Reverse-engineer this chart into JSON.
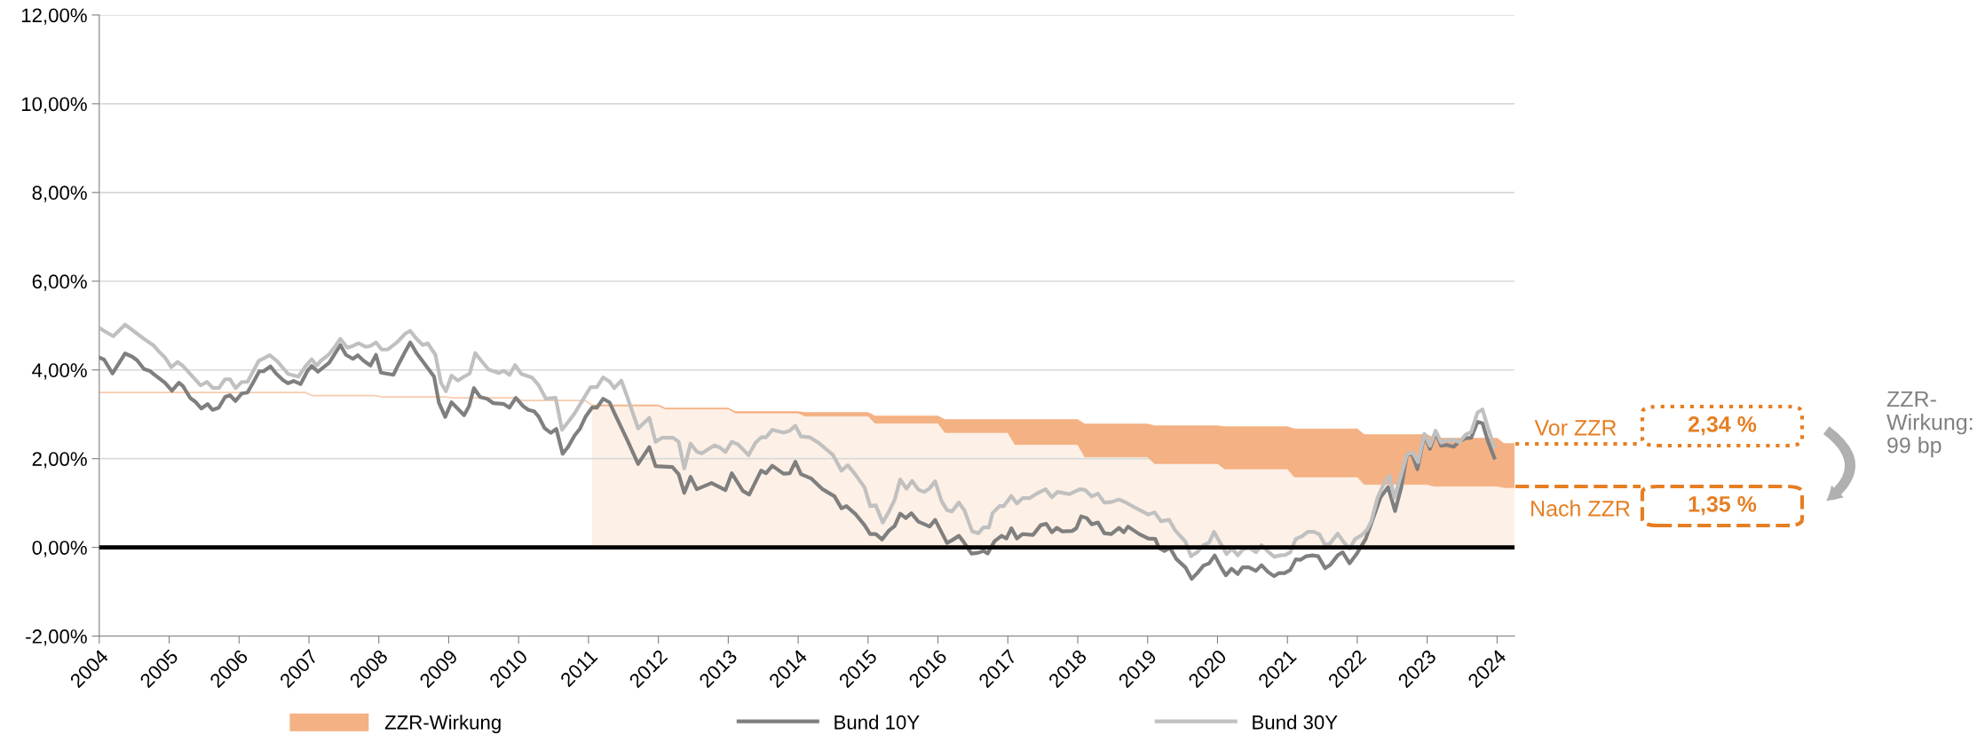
{
  "chart_data": {
    "type": "line",
    "xlim": [
      2004,
      2024.25
    ],
    "xticks": [
      2004,
      2005,
      2006,
      2007,
      2008,
      2009,
      2010,
      2011,
      2012,
      2013,
      2014,
      2015,
      2016,
      2017,
      2018,
      2019,
      2020,
      2021,
      2022,
      2023,
      2024
    ],
    "ylim": [
      -2,
      12
    ],
    "yticks": [
      {
        "value": -2,
        "label": "-2,00%"
      },
      {
        "value": 0,
        "label": "0,00%"
      },
      {
        "value": 2,
        "label": "2,00%"
      },
      {
        "value": 4,
        "label": "4,00%"
      },
      {
        "value": 6,
        "label": "6,00%"
      },
      {
        "value": 8,
        "label": "8,00%"
      },
      {
        "value": 10,
        "label": "10,00%"
      },
      {
        "value": 12,
        "label": "12,00%"
      }
    ],
    "grid": "y",
    "legend": "bottom",
    "stacked": true,
    "line_style": "solid",
    "marker": "none",
    "ref_lines": [
      {
        "axis": "y",
        "value": 0,
        "color": "#000000"
      }
    ],
    "series": [
      {
        "type": "line",
        "color": "#f8cbad",
        "x": [
          2004.0,
          2006.95,
          2007.05,
          2007.95,
          2008.05,
          2008.95,
          2009.05,
          2009.95,
          2010.05,
          2010.95,
          2011.05
        ],
        "values": [
          3.49,
          3.49,
          3.42,
          3.42,
          3.39,
          3.39,
          3.37,
          3.37,
          3.31,
          3.31,
          3.21
        ]
      },
      {
        "type": "area",
        "color": "#fdf0e6",
        "x": [
          2011.05,
          2012.0,
          2012.1,
          2013.0,
          2013.1,
          2014.0,
          2014.1,
          2015.0,
          2015.1,
          2016.0,
          2016.1,
          2017.0,
          2017.1,
          2018.0,
          2018.1,
          2019.0,
          2019.1,
          2020.0,
          2020.1,
          2021.0,
          2021.1,
          2022.0,
          2022.1,
          2023.0,
          2023.1,
          2024.0,
          2024.1,
          2024.25
        ],
        "values": [
          3.19,
          3.19,
          3.12,
          3.12,
          3.03,
          3.03,
          2.96,
          2.96,
          2.8,
          2.8,
          2.59,
          2.59,
          2.32,
          2.32,
          2.04,
          2.04,
          1.89,
          1.89,
          1.77,
          1.77,
          1.59,
          1.59,
          1.42,
          1.42,
          1.38,
          1.38,
          1.35,
          1.35
        ]
      },
      {
        "name": "ZZR-Wirkung",
        "type": "area",
        "color": "#f4b183",
        "x": [
          2011.05,
          2012.0,
          2012.1,
          2013.0,
          2013.1,
          2014.0,
          2014.1,
          2015.0,
          2015.1,
          2016.0,
          2016.1,
          2017.0,
          2017.1,
          2018.0,
          2018.1,
          2019.0,
          2019.1,
          2020.0,
          2020.1,
          2021.0,
          2021.1,
          2022.0,
          2022.1,
          2023.0,
          2023.1,
          2024.0,
          2024.1,
          2024.25
        ],
        "values": [
          0.02,
          0.02,
          0.02,
          0.02,
          0.03,
          0.03,
          0.08,
          0.08,
          0.16,
          0.16,
          0.29,
          0.29,
          0.56,
          0.56,
          0.74,
          0.74,
          0.85,
          0.85,
          0.95,
          0.95,
          1.08,
          1.08,
          1.12,
          1.12,
          1.08,
          1.08,
          0.99,
          0.99
        ]
      },
      {
        "name": "Bund 10Y",
        "color": "#7f7f7f",
        "x": [
          2004.0,
          2004.07,
          2004.19,
          2004.37,
          2004.47,
          2004.54,
          2004.64,
          2004.72,
          2004.79,
          2004.94,
          2005.04,
          2005.14,
          2005.2,
          2005.3,
          2005.37,
          2005.46,
          2005.55,
          2005.62,
          2005.71,
          2005.8,
          2005.87,
          2005.95,
          2006.04,
          2006.12,
          2006.2,
          2006.29,
          2006.35,
          2006.45,
          2006.53,
          2006.63,
          2006.7,
          2006.78,
          2006.88,
          2006.98,
          2007.04,
          2007.13,
          2007.29,
          2007.45,
          2007.53,
          2007.63,
          2007.7,
          2007.78,
          2007.88,
          2007.96,
          2008.03,
          2008.21,
          2008.28,
          2008.38,
          2008.45,
          2008.54,
          2008.64,
          2008.79,
          2008.86,
          2008.95,
          2009.04,
          2009.14,
          2009.22,
          2009.29,
          2009.36,
          2009.45,
          2009.55,
          2009.64,
          2009.79,
          2009.87,
          2009.96,
          2010.06,
          2010.14,
          2010.22,
          2010.29,
          2010.37,
          2010.46,
          2010.54,
          2010.63,
          2010.71,
          2010.8,
          2010.88,
          2010.96,
          2011.05,
          2011.12,
          2011.21,
          2011.3,
          2011.37,
          2011.56,
          2011.71,
          2011.87,
          2011.96,
          2012.2,
          2012.29,
          2012.37,
          2012.46,
          2012.55,
          2012.76,
          2012.96,
          2013.05,
          2013.21,
          2013.3,
          2013.47,
          2013.54,
          2013.63,
          2013.79,
          2013.88,
          2013.96,
          2014.04,
          2014.19,
          2014.35,
          2014.52,
          2014.62,
          2014.69,
          2014.82,
          2014.95,
          2015.03,
          2015.11,
          2015.2,
          2015.3,
          2015.38,
          2015.46,
          2015.54,
          2015.62,
          2015.72,
          2015.88,
          2015.96,
          2016.13,
          2016.2,
          2016.3,
          2016.36,
          2016.48,
          2016.58,
          2016.65,
          2016.71,
          2016.81,
          2016.91,
          2016.98,
          2017.05,
          2017.13,
          2017.21,
          2017.36,
          2017.47,
          2017.55,
          2017.63,
          2017.7,
          2017.78,
          2017.92,
          2017.98,
          2018.05,
          2018.13,
          2018.2,
          2018.29,
          2018.38,
          2018.48,
          2018.59,
          2018.66,
          2018.72,
          2018.88,
          2019.01,
          2019.11,
          2019.16,
          2019.24,
          2019.32,
          2019.41,
          2019.54,
          2019.63,
          2019.71,
          2019.8,
          2019.88,
          2019.96,
          2020.05,
          2020.12,
          2020.2,
          2020.29,
          2020.36,
          2020.45,
          2020.55,
          2020.63,
          2020.72,
          2020.81,
          2020.88,
          2020.96,
          2021.04,
          2021.12,
          2021.19,
          2021.27,
          2021.36,
          2021.44,
          2021.54,
          2021.61,
          2021.72,
          2021.79,
          2021.89,
          2021.99,
          2022.12,
          2022.23,
          2022.33,
          2022.44,
          2022.54,
          2022.63,
          2022.71,
          2022.78,
          2022.86,
          2022.96,
          2023.04,
          2023.12,
          2023.2,
          2023.28,
          2023.38,
          2023.46,
          2023.55,
          2023.63,
          2023.72,
          2023.79,
          2023.87,
          2023.96
        ],
        "values": [
          4.28,
          4.23,
          3.92,
          4.37,
          4.3,
          4.22,
          4.02,
          3.98,
          3.89,
          3.71,
          3.53,
          3.71,
          3.63,
          3.37,
          3.29,
          3.13,
          3.23,
          3.1,
          3.15,
          3.39,
          3.43,
          3.3,
          3.47,
          3.49,
          3.71,
          3.97,
          3.97,
          4.08,
          3.92,
          3.77,
          3.7,
          3.75,
          3.68,
          3.98,
          4.09,
          3.96,
          4.16,
          4.56,
          4.34,
          4.25,
          4.33,
          4.21,
          4.1,
          4.34,
          3.94,
          3.89,
          4.12,
          4.42,
          4.62,
          4.38,
          4.17,
          3.85,
          3.26,
          2.94,
          3.27,
          3.11,
          2.98,
          3.18,
          3.59,
          3.39,
          3.35,
          3.25,
          3.23,
          3.15,
          3.37,
          3.19,
          3.1,
          3.07,
          2.94,
          2.69,
          2.58,
          2.67,
          2.11,
          2.27,
          2.52,
          2.68,
          2.95,
          3.15,
          3.15,
          3.35,
          3.27,
          3.03,
          2.4,
          1.88,
          2.26,
          1.83,
          1.81,
          1.65,
          1.23,
          1.59,
          1.31,
          1.45,
          1.29,
          1.67,
          1.27,
          1.19,
          1.73,
          1.67,
          1.84,
          1.66,
          1.67,
          1.93,
          1.65,
          1.55,
          1.31,
          1.15,
          0.88,
          0.93,
          0.75,
          0.5,
          0.3,
          0.3,
          0.18,
          0.38,
          0.48,
          0.76,
          0.66,
          0.77,
          0.58,
          0.47,
          0.62,
          0.1,
          0.16,
          0.26,
          0.14,
          -0.14,
          -0.12,
          -0.08,
          -0.14,
          0.14,
          0.26,
          0.2,
          0.43,
          0.2,
          0.3,
          0.28,
          0.5,
          0.53,
          0.34,
          0.44,
          0.36,
          0.37,
          0.43,
          0.7,
          0.66,
          0.52,
          0.56,
          0.32,
          0.3,
          0.44,
          0.34,
          0.47,
          0.3,
          0.2,
          0.19,
          -0.01,
          -0.08,
          -0.01,
          -0.26,
          -0.45,
          -0.71,
          -0.58,
          -0.41,
          -0.36,
          -0.18,
          -0.45,
          -0.63,
          -0.48,
          -0.6,
          -0.45,
          -0.45,
          -0.53,
          -0.4,
          -0.55,
          -0.65,
          -0.58,
          -0.58,
          -0.51,
          -0.27,
          -0.28,
          -0.2,
          -0.18,
          -0.2,
          -0.47,
          -0.4,
          -0.18,
          -0.11,
          -0.36,
          -0.15,
          0.19,
          0.67,
          1.12,
          1.36,
          0.82,
          1.36,
          2.09,
          2.12,
          1.76,
          2.54,
          2.22,
          2.59,
          2.29,
          2.31,
          2.27,
          2.39,
          2.46,
          2.47,
          2.83,
          2.8,
          2.39,
          2.02
        ]
      },
      {
        "name": "Bund 30Y",
        "color": "#c0c0c0",
        "x": [
          2004.0,
          2004.09,
          2004.2,
          2004.37,
          2004.54,
          2004.64,
          2004.77,
          2004.85,
          2004.94,
          2005.03,
          2005.12,
          2005.19,
          2005.3,
          2005.45,
          2005.54,
          2005.63,
          2005.71,
          2005.8,
          2005.87,
          2005.95,
          2006.04,
          2006.12,
          2006.28,
          2006.44,
          2006.55,
          2006.7,
          2006.85,
          2006.95,
          2007.04,
          2007.11,
          2007.18,
          2007.28,
          2007.36,
          2007.45,
          2007.55,
          2007.63,
          2007.71,
          2007.81,
          2007.88,
          2007.96,
          2008.04,
          2008.13,
          2008.26,
          2008.38,
          2008.45,
          2008.54,
          2008.63,
          2008.7,
          2008.81,
          2008.89,
          2008.96,
          2009.04,
          2009.13,
          2009.21,
          2009.3,
          2009.38,
          2009.47,
          2009.57,
          2009.72,
          2009.79,
          2009.87,
          2009.95,
          2010.04,
          2010.19,
          2010.29,
          2010.39,
          2010.53,
          2010.62,
          2010.71,
          2010.81,
          2010.96,
          2011.03,
          2011.12,
          2011.21,
          2011.3,
          2011.37,
          2011.47,
          2011.56,
          2011.71,
          2011.87,
          2011.96,
          2012.05,
          2012.21,
          2012.29,
          2012.37,
          2012.46,
          2012.55,
          2012.62,
          2012.8,
          2012.87,
          2012.96,
          2013.05,
          2013.14,
          2013.29,
          2013.39,
          2013.47,
          2013.54,
          2013.63,
          2013.79,
          2013.88,
          2013.96,
          2014.04,
          2014.17,
          2014.29,
          2014.5,
          2014.62,
          2014.71,
          2014.81,
          2014.95,
          2015.03,
          2015.11,
          2015.21,
          2015.3,
          2015.38,
          2015.46,
          2015.55,
          2015.63,
          2015.72,
          2015.8,
          2015.88,
          2015.96,
          2016.05,
          2016.13,
          2016.2,
          2016.3,
          2016.38,
          2016.49,
          2016.58,
          2016.65,
          2016.73,
          2016.78,
          2016.88,
          2016.94,
          2017.05,
          2017.13,
          2017.21,
          2017.31,
          2017.41,
          2017.54,
          2017.63,
          2017.71,
          2017.88,
          2018.03,
          2018.11,
          2018.2,
          2018.29,
          2018.38,
          2018.48,
          2018.59,
          2018.69,
          2018.84,
          2019.01,
          2019.1,
          2019.19,
          2019.31,
          2019.39,
          2019.54,
          2019.62,
          2019.71,
          2019.8,
          2019.88,
          2019.95,
          2020.05,
          2020.13,
          2020.21,
          2020.29,
          2020.36,
          2020.45,
          2020.55,
          2020.63,
          2020.72,
          2020.81,
          2020.9,
          2020.97,
          2021.04,
          2021.12,
          2021.21,
          2021.29,
          2021.38,
          2021.46,
          2021.54,
          2021.61,
          2021.72,
          2021.8,
          2021.89,
          2021.97,
          2022.06,
          2022.14,
          2022.2,
          2022.29,
          2022.37,
          2022.46,
          2022.53,
          2022.62,
          2022.71,
          2022.79,
          2022.87,
          2022.96,
          2023.04,
          2023.12,
          2023.2,
          2023.29,
          2023.38,
          2023.46,
          2023.55,
          2023.63,
          2023.72,
          2023.79,
          2023.87,
          2023.96
        ],
        "values": [
          4.95,
          4.86,
          4.76,
          5.02,
          4.82,
          4.7,
          4.56,
          4.42,
          4.28,
          4.06,
          4.18,
          4.1,
          3.91,
          3.65,
          3.73,
          3.59,
          3.59,
          3.79,
          3.79,
          3.59,
          3.73,
          3.73,
          4.2,
          4.33,
          4.19,
          3.91,
          3.85,
          4.08,
          4.24,
          4.1,
          4.22,
          4.34,
          4.5,
          4.7,
          4.5,
          4.54,
          4.6,
          4.52,
          4.54,
          4.62,
          4.46,
          4.46,
          4.62,
          4.82,
          4.88,
          4.7,
          4.56,
          4.6,
          4.34,
          3.71,
          3.52,
          3.87,
          3.76,
          3.84,
          3.92,
          4.38,
          4.2,
          4.01,
          3.93,
          3.98,
          3.89,
          4.11,
          3.91,
          3.83,
          3.65,
          3.35,
          3.37,
          2.65,
          2.83,
          3.04,
          3.43,
          3.61,
          3.61,
          3.83,
          3.74,
          3.59,
          3.76,
          3.37,
          2.68,
          2.92,
          2.38,
          2.47,
          2.47,
          2.38,
          1.78,
          2.34,
          2.16,
          2.12,
          2.3,
          2.26,
          2.15,
          2.38,
          2.32,
          2.08,
          2.36,
          2.48,
          2.48,
          2.65,
          2.59,
          2.63,
          2.74,
          2.5,
          2.48,
          2.36,
          2.08,
          1.73,
          1.85,
          1.66,
          1.35,
          0.93,
          0.95,
          0.56,
          0.81,
          1.07,
          1.53,
          1.32,
          1.5,
          1.3,
          1.25,
          1.33,
          1.49,
          1.05,
          0.84,
          0.81,
          1.01,
          0.83,
          0.36,
          0.32,
          0.45,
          0.45,
          0.77,
          0.93,
          0.93,
          1.16,
          0.99,
          1.11,
          1.11,
          1.21,
          1.31,
          1.13,
          1.25,
          1.2,
          1.31,
          1.29,
          1.15,
          1.21,
          1.01,
          1.02,
          1.08,
          1.01,
          0.88,
          0.74,
          0.79,
          0.59,
          0.62,
          0.39,
          0.13,
          -0.2,
          -0.11,
          0.05,
          0.11,
          0.35,
          0.07,
          -0.15,
          -0.03,
          -0.18,
          -0.05,
          -0.01,
          -0.11,
          0.05,
          -0.09,
          -0.21,
          -0.18,
          -0.17,
          -0.11,
          0.19,
          0.25,
          0.35,
          0.35,
          0.29,
          0.05,
          0.09,
          0.31,
          0.13,
          -0.03,
          0.19,
          0.27,
          0.4,
          0.59,
          1.12,
          1.4,
          1.62,
          1.12,
          1.59,
          2.09,
          2.14,
          1.92,
          2.56,
          2.29,
          2.63,
          2.36,
          2.41,
          2.42,
          2.37,
          2.54,
          2.6,
          3.04,
          3.11,
          2.69,
          2.27
        ]
      }
    ],
    "annotations": [
      "Vor ZZR",
      "2,34 %",
      "Nach ZZR",
      "1,35 %",
      "ZZR-\nWirkung:\n99 bp"
    ]
  }
}
